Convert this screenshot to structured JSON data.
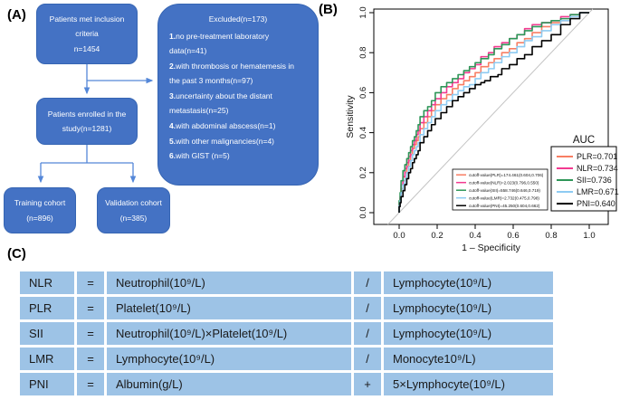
{
  "panel_a": {
    "label": "(A)",
    "boxes": {
      "inclusion": {
        "lines": [
          "Patients met inclusion",
          "criteria",
          "n=1454"
        ]
      },
      "excluded": {
        "title": "Excluded(n=173)",
        "items": [
          {
            "num": "1.",
            "text": "no pre-treatment laboratory data(n=41)"
          },
          {
            "num": "2.",
            "text": "with thrombosis or hematemesis in the past 3 months(n=97)"
          },
          {
            "num": "3.",
            "text": "uncertainty about the distant metastasis(n=25)"
          },
          {
            "num": "4.",
            "text": "with abdominal abscess(n=1)"
          },
          {
            "num": "5.",
            "text": "with other malignancies(n=4)"
          },
          {
            "num": "6.",
            "text": "with GIST (n=5)"
          }
        ]
      },
      "enrolled": {
        "lines": [
          "Patients enrolled in the",
          "study(n=1281)"
        ]
      },
      "training": {
        "lines": [
          "Training cohort",
          "(n=896)"
        ]
      },
      "validation": {
        "lines": [
          "Validation cohort",
          "(n=385)"
        ]
      }
    },
    "colors": {
      "box_fill": "#4472C4",
      "arrow": "#5487D8",
      "text": "#FFFFFF"
    }
  },
  "panel_b": {
    "label": "(B)"
  },
  "chart_data": {
    "type": "line",
    "subtype": "roc-curves",
    "xlabel": "1 – Specificity",
    "ylabel": "Sensitivity",
    "xlim": [
      0,
      1
    ],
    "ylim": [
      0,
      1
    ],
    "xticks": [
      0.0,
      0.2,
      0.4,
      0.6,
      0.8,
      1.0
    ],
    "yticks": [
      0.0,
      0.2,
      0.4,
      0.6,
      0.8,
      1.0
    ],
    "grid": false,
    "diagonal_reference": true,
    "legend_title": "AUC",
    "legend_position": "right-bottom",
    "series": [
      {
        "name": "PLR",
        "auc_label": "PLR=0.701",
        "auc": 0.701,
        "color": "#F87E63",
        "cutoff_label": "cutoff-value(PLR)=174.461(0.604,0.706)",
        "points": [
          [
            0,
            0
          ],
          [
            0.005,
            0.04
          ],
          [
            0.01,
            0.07
          ],
          [
            0.02,
            0.12
          ],
          [
            0.03,
            0.16
          ],
          [
            0.04,
            0.2
          ],
          [
            0.05,
            0.23
          ],
          [
            0.06,
            0.26
          ],
          [
            0.07,
            0.29
          ],
          [
            0.08,
            0.32
          ],
          [
            0.09,
            0.34
          ],
          [
            0.1,
            0.36
          ],
          [
            0.11,
            0.38
          ],
          [
            0.13,
            0.42
          ],
          [
            0.15,
            0.45
          ],
          [
            0.17,
            0.48
          ],
          [
            0.19,
            0.51
          ],
          [
            0.22,
            0.54
          ],
          [
            0.25,
            0.57
          ],
          [
            0.28,
            0.59
          ],
          [
            0.31,
            0.62
          ],
          [
            0.34,
            0.64
          ],
          [
            0.37,
            0.66
          ],
          [
            0.4,
            0.68
          ],
          [
            0.43,
            0.7
          ],
          [
            0.47,
            0.73
          ],
          [
            0.5,
            0.75
          ],
          [
            0.54,
            0.77
          ],
          [
            0.58,
            0.8
          ],
          [
            0.62,
            0.82
          ],
          [
            0.66,
            0.85
          ],
          [
            0.7,
            0.87
          ],
          [
            0.75,
            0.9
          ],
          [
            0.8,
            0.93
          ],
          [
            0.85,
            0.95
          ],
          [
            0.9,
            0.96
          ],
          [
            0.95,
            0.98
          ],
          [
            1,
            1
          ]
        ]
      },
      {
        "name": "NLR",
        "auc_label": "NLR=0.734",
        "auc": 0.734,
        "color": "#F23A90",
        "cutoff_label": "cutoff-value(NLR)=2.023(0.796,0.550)",
        "points": [
          [
            0,
            0
          ],
          [
            0.005,
            0.05
          ],
          [
            0.01,
            0.08
          ],
          [
            0.02,
            0.14
          ],
          [
            0.03,
            0.18
          ],
          [
            0.04,
            0.22
          ],
          [
            0.05,
            0.25
          ],
          [
            0.06,
            0.28
          ],
          [
            0.07,
            0.31
          ],
          [
            0.08,
            0.34
          ],
          [
            0.09,
            0.36
          ],
          [
            0.1,
            0.39
          ],
          [
            0.11,
            0.41
          ],
          [
            0.13,
            0.45
          ],
          [
            0.15,
            0.48
          ],
          [
            0.17,
            0.51
          ],
          [
            0.19,
            0.54
          ],
          [
            0.22,
            0.57
          ],
          [
            0.25,
            0.6
          ],
          [
            0.28,
            0.63
          ],
          [
            0.31,
            0.65
          ],
          [
            0.34,
            0.67
          ],
          [
            0.37,
            0.7
          ],
          [
            0.4,
            0.72
          ],
          [
            0.43,
            0.74
          ],
          [
            0.47,
            0.78
          ],
          [
            0.5,
            0.8
          ],
          [
            0.54,
            0.83
          ],
          [
            0.58,
            0.85
          ],
          [
            0.62,
            0.87
          ],
          [
            0.66,
            0.89
          ],
          [
            0.7,
            0.92
          ],
          [
            0.75,
            0.94
          ],
          [
            0.8,
            0.95
          ],
          [
            0.85,
            0.96
          ],
          [
            0.9,
            0.98
          ],
          [
            0.95,
            0.99
          ],
          [
            1,
            1
          ]
        ]
      },
      {
        "name": "SII",
        "auc_label": "SII=0.736",
        "auc": 0.736,
        "color": "#2E9658",
        "cutoff_label": "cutoff-value(SII)=558.746(0.646,0.719)",
        "points": [
          [
            0,
            0
          ],
          [
            0.005,
            0.06
          ],
          [
            0.01,
            0.1
          ],
          [
            0.02,
            0.16
          ],
          [
            0.03,
            0.21
          ],
          [
            0.04,
            0.24
          ],
          [
            0.05,
            0.27
          ],
          [
            0.06,
            0.3
          ],
          [
            0.07,
            0.33
          ],
          [
            0.08,
            0.36
          ],
          [
            0.09,
            0.38
          ],
          [
            0.1,
            0.41
          ],
          [
            0.11,
            0.44
          ],
          [
            0.13,
            0.48
          ],
          [
            0.15,
            0.51
          ],
          [
            0.17,
            0.53
          ],
          [
            0.19,
            0.56
          ],
          [
            0.22,
            0.6
          ],
          [
            0.25,
            0.63
          ],
          [
            0.28,
            0.65
          ],
          [
            0.31,
            0.67
          ],
          [
            0.34,
            0.69
          ],
          [
            0.37,
            0.71
          ],
          [
            0.4,
            0.73
          ],
          [
            0.43,
            0.75
          ],
          [
            0.47,
            0.77
          ],
          [
            0.5,
            0.79
          ],
          [
            0.54,
            0.82
          ],
          [
            0.58,
            0.84
          ],
          [
            0.62,
            0.87
          ],
          [
            0.66,
            0.89
          ],
          [
            0.7,
            0.91
          ],
          [
            0.75,
            0.93
          ],
          [
            0.8,
            0.95
          ],
          [
            0.85,
            0.96
          ],
          [
            0.9,
            0.97
          ],
          [
            0.95,
            0.99
          ],
          [
            1,
            1
          ]
        ]
      },
      {
        "name": "LMR",
        "auc_label": "LMR=0.671",
        "auc": 0.671,
        "color": "#8ECBF2",
        "cutoff_label": "cutoff-value(LMR)=2.732(0.475,0.798)",
        "points": [
          [
            0,
            0
          ],
          [
            0.005,
            0.035
          ],
          [
            0.01,
            0.06
          ],
          [
            0.02,
            0.1
          ],
          [
            0.03,
            0.14
          ],
          [
            0.04,
            0.17
          ],
          [
            0.05,
            0.2
          ],
          [
            0.06,
            0.23
          ],
          [
            0.07,
            0.26
          ],
          [
            0.08,
            0.29
          ],
          [
            0.09,
            0.31
          ],
          [
            0.1,
            0.33
          ],
          [
            0.11,
            0.35
          ],
          [
            0.13,
            0.39
          ],
          [
            0.15,
            0.42
          ],
          [
            0.17,
            0.45
          ],
          [
            0.19,
            0.48
          ],
          [
            0.22,
            0.51
          ],
          [
            0.25,
            0.54
          ],
          [
            0.28,
            0.56
          ],
          [
            0.31,
            0.59
          ],
          [
            0.34,
            0.61
          ],
          [
            0.37,
            0.63
          ],
          [
            0.4,
            0.64
          ],
          [
            0.43,
            0.67
          ],
          [
            0.47,
            0.7
          ],
          [
            0.5,
            0.72
          ],
          [
            0.54,
            0.75
          ],
          [
            0.58,
            0.78
          ],
          [
            0.62,
            0.8
          ],
          [
            0.66,
            0.83
          ],
          [
            0.7,
            0.86
          ],
          [
            0.75,
            0.88
          ],
          [
            0.8,
            0.91
          ],
          [
            0.85,
            0.94
          ],
          [
            0.9,
            0.96
          ],
          [
            0.95,
            0.98
          ],
          [
            1,
            1
          ]
        ]
      },
      {
        "name": "PNI",
        "auc_label": "PNI=0.640",
        "auc": 0.64,
        "color": "#000000",
        "cutoff_label": "cutoff-value(PNI)=45.250(0.604,0.662)",
        "points": [
          [
            0,
            0
          ],
          [
            0.005,
            0.03
          ],
          [
            0.01,
            0.05
          ],
          [
            0.02,
            0.08
          ],
          [
            0.03,
            0.11
          ],
          [
            0.04,
            0.14
          ],
          [
            0.05,
            0.17
          ],
          [
            0.06,
            0.2
          ],
          [
            0.07,
            0.22
          ],
          [
            0.08,
            0.25
          ],
          [
            0.09,
            0.27
          ],
          [
            0.1,
            0.29
          ],
          [
            0.11,
            0.31
          ],
          [
            0.13,
            0.35
          ],
          [
            0.15,
            0.38
          ],
          [
            0.17,
            0.41
          ],
          [
            0.19,
            0.44
          ],
          [
            0.22,
            0.47
          ],
          [
            0.25,
            0.5
          ],
          [
            0.28,
            0.53
          ],
          [
            0.31,
            0.56
          ],
          [
            0.34,
            0.58
          ],
          [
            0.37,
            0.6
          ],
          [
            0.4,
            0.62
          ],
          [
            0.43,
            0.64
          ],
          [
            0.45,
            0.65
          ],
          [
            0.48,
            0.66
          ],
          [
            0.52,
            0.68
          ],
          [
            0.54,
            0.69
          ],
          [
            0.58,
            0.72
          ],
          [
            0.62,
            0.74
          ],
          [
            0.66,
            0.77
          ],
          [
            0.7,
            0.79
          ],
          [
            0.75,
            0.83
          ],
          [
            0.8,
            0.86
          ],
          [
            0.85,
            0.89
          ],
          [
            0.9,
            0.94
          ],
          [
            0.95,
            0.97
          ],
          [
            1,
            1
          ]
        ]
      }
    ]
  },
  "panel_c": {
    "label": "(C)",
    "rows": [
      {
        "term": "NLR",
        "eq": "=",
        "part1": "Neutrophil(10⁹/L)",
        "op": "/",
        "part2": "Lymphocyte(10⁹/L)"
      },
      {
        "term": "PLR",
        "eq": "=",
        "part1": "Platelet(10⁹/L)",
        "op": "/",
        "part2": "Lymphocyte(10⁹/L)"
      },
      {
        "term": "SII",
        "eq": "=",
        "part1": "Neutrophil(10⁹/L)×Platelet(10⁹/L)",
        "op": "/",
        "part2": "Lymphocyte(10⁹/L)"
      },
      {
        "term": "LMR",
        "eq": "=",
        "part1": "Lymphocyte(10⁹/L)",
        "op": "/",
        "part2": "Monocyte10⁹/L)"
      },
      {
        "term": "PNI",
        "eq": "=",
        "part1": "Albumin(g/L)",
        "op": "+",
        "part2": "5×Lymphocyte(10⁹/L)"
      }
    ],
    "colors": {
      "cell_fill": "#9DC3E6",
      "text": "#1A1A1A"
    }
  }
}
